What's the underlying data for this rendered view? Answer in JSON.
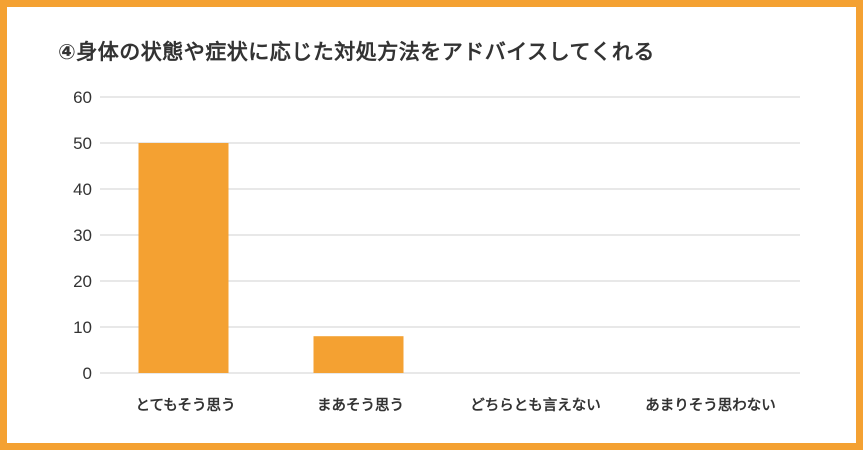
{
  "chart_data": {
    "type": "bar",
    "title": "④身体の状態や症状に応じた対処方法をアドバイスしてくれる",
    "categories": [
      "とてもそう思う",
      "まあそう思う",
      "どちらとも言えない",
      "あまりそう思わない"
    ],
    "values": [
      50,
      8,
      0,
      0
    ],
    "ylim": [
      0,
      60
    ],
    "yticks": [
      0,
      10,
      20,
      30,
      40,
      50,
      60
    ],
    "grid": true,
    "legend": "none",
    "colors": {
      "bar": "#f4a132",
      "frame": "#f4a132",
      "grid": "#d0d0d0",
      "text": "#333333"
    }
  }
}
